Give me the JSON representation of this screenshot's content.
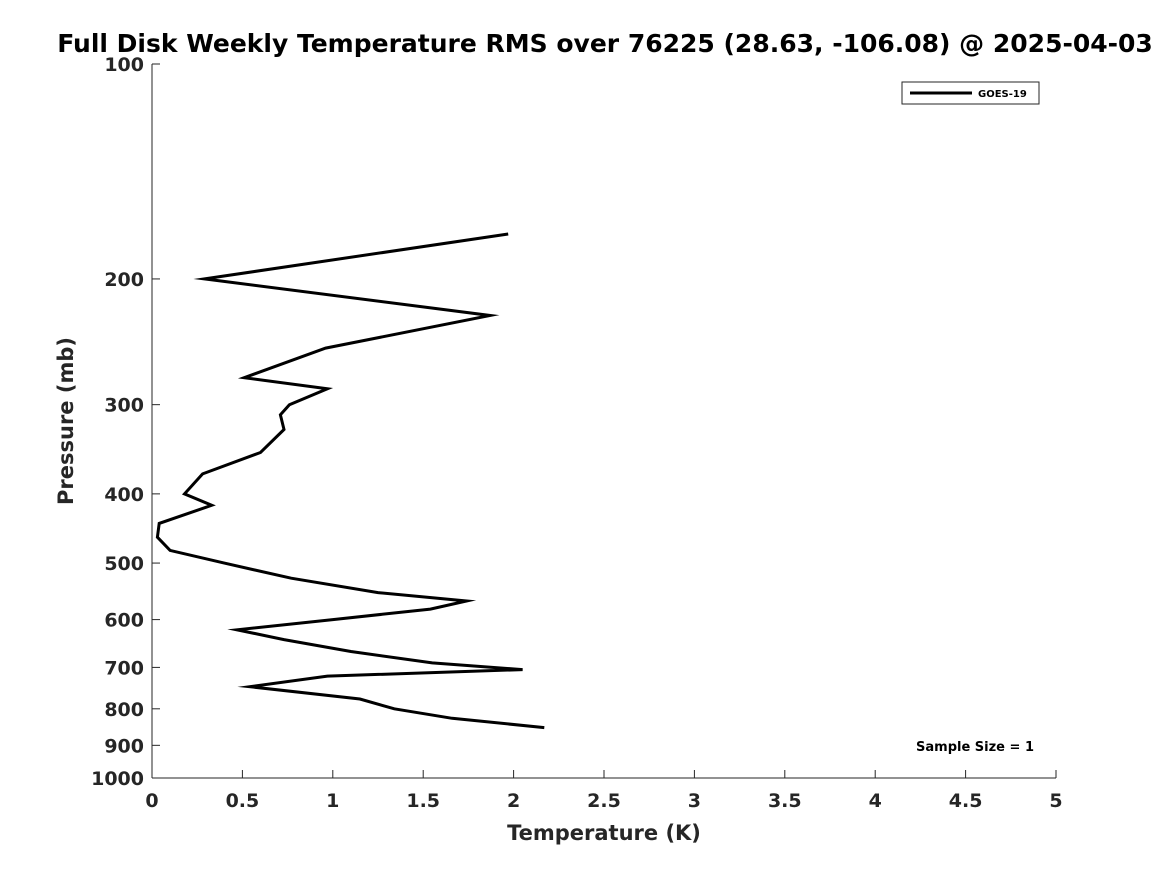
{
  "chart_data": {
    "type": "line",
    "title": "Full Disk Weekly Temperature RMS over 76225 (28.63, -106.08) @ 2025-04-03",
    "xlabel": "Temperature (K)",
    "ylabel": "Pressure (mb)",
    "xlim": [
      0,
      5
    ],
    "ylim": [
      100,
      1000
    ],
    "yscale": "log",
    "y_reversed": true,
    "grid": false,
    "legend_position": "top-right",
    "x_ticks": [
      0,
      0.5,
      1,
      1.5,
      2,
      2.5,
      3,
      3.5,
      4,
      4.5,
      5
    ],
    "x_tick_labels": [
      "0",
      "0.5",
      "1",
      "1.5",
      "2",
      "2.5",
      "3",
      "3.5",
      "4",
      "4.5",
      "5"
    ],
    "y_ticks": [
      100,
      200,
      300,
      400,
      500,
      600,
      700,
      800,
      900,
      1000
    ],
    "y_tick_labels": [
      "100",
      "200",
      "300",
      "400",
      "500",
      "600",
      "700",
      "800",
      "900",
      "1000"
    ],
    "series": [
      {
        "name": "GOES-19",
        "color": "#000000",
        "points": [
          {
            "x": 1.97,
            "y": 173
          },
          {
            "x": 0.29,
            "y": 200
          },
          {
            "x": 1.87,
            "y": 225
          },
          {
            "x": 0.96,
            "y": 250
          },
          {
            "x": 0.51,
            "y": 275
          },
          {
            "x": 0.97,
            "y": 285
          },
          {
            "x": 0.76,
            "y": 300
          },
          {
            "x": 0.71,
            "y": 310
          },
          {
            "x": 0.73,
            "y": 325
          },
          {
            "x": 0.6,
            "y": 350
          },
          {
            "x": 0.28,
            "y": 375
          },
          {
            "x": 0.18,
            "y": 400
          },
          {
            "x": 0.33,
            "y": 415
          },
          {
            "x": 0.04,
            "y": 440
          },
          {
            "x": 0.03,
            "y": 460
          },
          {
            "x": 0.1,
            "y": 480
          },
          {
            "x": 0.4,
            "y": 500
          },
          {
            "x": 0.77,
            "y": 525
          },
          {
            "x": 1.25,
            "y": 550
          },
          {
            "x": 1.74,
            "y": 565
          },
          {
            "x": 1.54,
            "y": 580
          },
          {
            "x": 1.0,
            "y": 600
          },
          {
            "x": 0.47,
            "y": 620
          },
          {
            "x": 0.73,
            "y": 640
          },
          {
            "x": 1.1,
            "y": 665
          },
          {
            "x": 1.55,
            "y": 690
          },
          {
            "x": 2.05,
            "y": 705
          },
          {
            "x": 0.97,
            "y": 720
          },
          {
            "x": 0.54,
            "y": 745
          },
          {
            "x": 1.15,
            "y": 775
          },
          {
            "x": 1.34,
            "y": 800
          },
          {
            "x": 1.66,
            "y": 825
          },
          {
            "x": 2.17,
            "y": 850
          }
        ]
      }
    ],
    "annotation": "Sample Size = 1"
  }
}
